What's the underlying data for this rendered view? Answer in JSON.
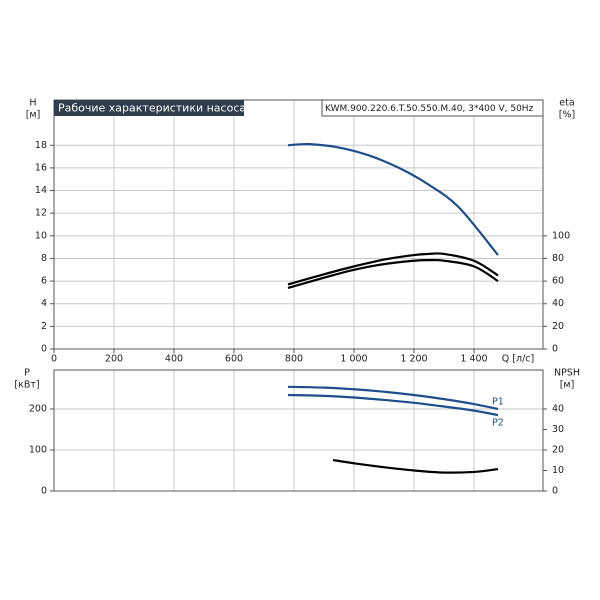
{
  "chart_data": [
    {
      "type": "line",
      "title": "Рабочие характеристики насоса",
      "subtitle": "KWM.900.220.6.T.50.550.M.40, 3*400 V, 50Hz",
      "x_label": "Q [л/с]",
      "y_label": "H",
      "y_unit": "[м]",
      "y2_label": "eta",
      "y2_unit": "[%]",
      "xlim": [
        0,
        1630
      ],
      "xticks": [
        0,
        200,
        400,
        600,
        800,
        {
          "value": 1000,
          "label": "1 000"
        },
        {
          "value": 1200,
          "label": "1 200"
        },
        {
          "value": 1400,
          "label": "1 400"
        }
      ],
      "ylim": [
        0,
        22
      ],
      "yticks": [
        0,
        2,
        4,
        6,
        8,
        10,
        12,
        14,
        16,
        18
      ],
      "y2lim": [
        0,
        220
      ],
      "y2ticks": [
        0,
        20,
        40,
        60,
        80,
        100
      ],
      "grid": true,
      "series": [
        {
          "color": "#1f4e8c",
          "x": [
            780,
            850,
            950,
            1050,
            1150,
            1250,
            1350,
            1480
          ],
          "values": [
            18.0,
            18.1,
            17.8,
            17.1,
            16.0,
            14.5,
            12.5,
            8.3
          ]
        },
        {
          "color": "#000000",
          "axis": "y2",
          "x": [
            780,
            900,
            1000,
            1100,
            1200,
            1250,
            1300,
            1400,
            1480
          ],
          "values": [
            57,
            66,
            73,
            79,
            83,
            84,
            84,
            78,
            65
          ]
        },
        {
          "color": "#000000",
          "axis": "y2",
          "x": [
            780,
            900,
            1000,
            1100,
            1200,
            1250,
            1300,
            1400,
            1480
          ],
          "values": [
            54,
            63,
            70,
            75,
            78,
            78.5,
            78,
            73,
            60
          ]
        }
      ]
    },
    {
      "type": "line",
      "y_label": "P",
      "y_unit": "[кВт]",
      "y2_label": "NPSH",
      "y2_unit": "[м]",
      "xlim": [
        0,
        1630
      ],
      "ylim": [
        0,
        295
      ],
      "yticks": [
        0,
        100,
        200
      ],
      "y2lim": [
        0,
        59
      ],
      "y2ticks": [
        0,
        10,
        20,
        30,
        40
      ],
      "grid": true,
      "series": [
        {
          "name": "P1",
          "color": "#1f4e8c",
          "x": [
            780,
            900,
            1000,
            1100,
            1200,
            1300,
            1400,
            1480
          ],
          "values": [
            254,
            252,
            248,
            242,
            234,
            224,
            212,
            200
          ]
        },
        {
          "name": "P2",
          "color": "#1f4e8c",
          "x": [
            780,
            900,
            1000,
            1100,
            1200,
            1300,
            1400,
            1480
          ],
          "values": [
            234,
            232,
            228,
            222,
            215,
            206,
            196,
            185
          ]
        },
        {
          "color": "#000000",
          "axis": "y2",
          "x": [
            930,
            1000,
            1100,
            1200,
            1300,
            1400,
            1480
          ],
          "values": [
            15.1,
            13.5,
            11.6,
            10.0,
            9.0,
            9.3,
            10.7
          ]
        }
      ]
    }
  ]
}
